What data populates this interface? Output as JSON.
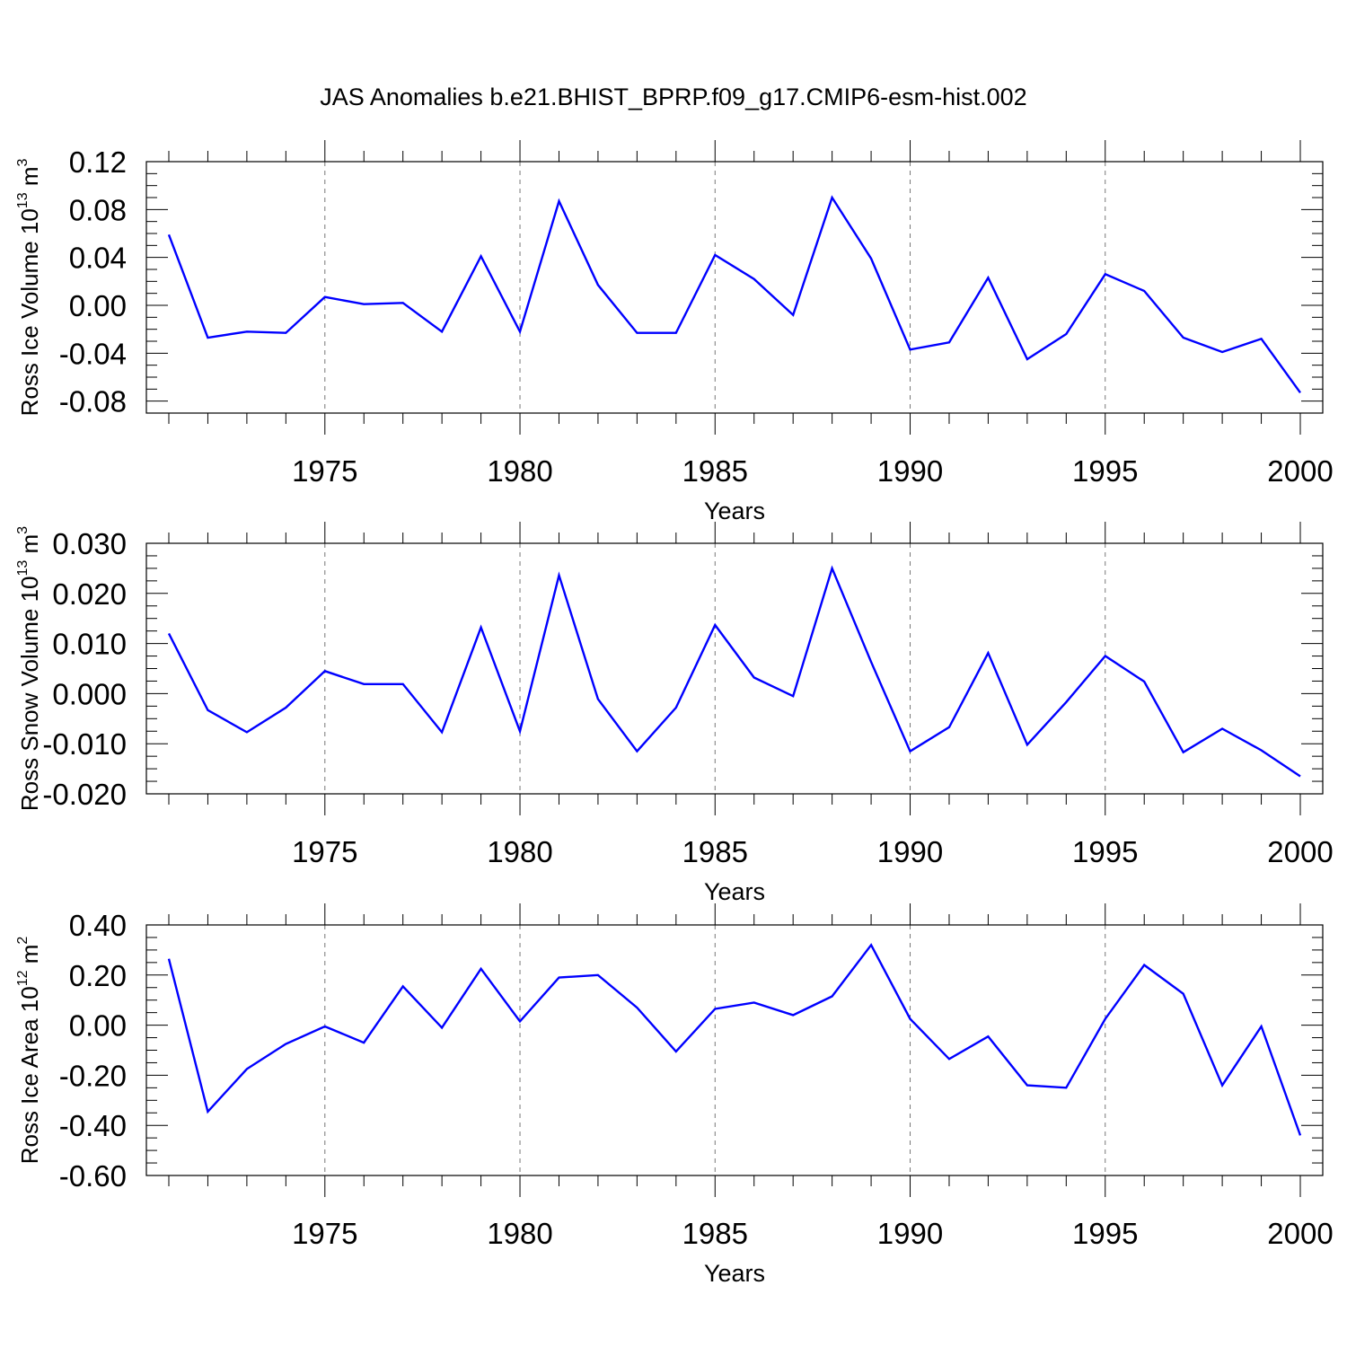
{
  "title": "JAS Anomalies b.e21.BHIST_BPRP.f09_g17.CMIP6-esm-hist.002",
  "colors": {
    "line": "#0000ff"
  },
  "chart_data": [
    {
      "type": "line",
      "ylabel": "Ross Ice Volume 10",
      "ylabel_exp": "13",
      "ylabel_unit": " m",
      "ylabel_unit_exp": "3",
      "xlabel": "Years",
      "xlim": [
        1971,
        2000
      ],
      "ylim": [
        -0.09,
        0.12
      ],
      "yticks": [
        0.12,
        0.08,
        0.04,
        0.0,
        -0.04,
        -0.08
      ],
      "ytick_labels": [
        "0.12",
        "0.08",
        "0.04",
        "0.00",
        "-0.04",
        "-0.08"
      ],
      "yminor_step": 0.01,
      "xticks": [
        1975,
        1980,
        1985,
        1990,
        1995,
        2000
      ],
      "xtick_labels": [
        "1975",
        "1980",
        "1985",
        "1990",
        "1995",
        "2000"
      ],
      "grid": "dashed vertical at major x ticks",
      "x": [
        1971,
        1972,
        1973,
        1974,
        1975,
        1976,
        1977,
        1978,
        1979,
        1980,
        1981,
        1982,
        1983,
        1984,
        1985,
        1986,
        1987,
        1988,
        1989,
        1990,
        1991,
        1992,
        1993,
        1994,
        1995,
        1996,
        1997,
        1998,
        1999,
        2000
      ],
      "y": [
        0.059,
        -0.027,
        -0.022,
        -0.023,
        0.007,
        0.001,
        0.002,
        -0.022,
        0.041,
        -0.022,
        0.087,
        0.017,
        -0.023,
        -0.023,
        0.042,
        0.022,
        -0.008,
        0.09,
        0.039,
        -0.037,
        -0.031,
        0.023,
        -0.045,
        -0.024,
        0.026,
        0.012,
        -0.027,
        -0.039,
        -0.028,
        -0.073
      ]
    },
    {
      "type": "line",
      "ylabel": "Ross Snow Volume 10",
      "ylabel_exp": "13",
      "ylabel_unit": " m",
      "ylabel_unit_exp": "3",
      "xlabel": "Years",
      "xlim": [
        1971,
        2000
      ],
      "ylim": [
        -0.02,
        0.03
      ],
      "yticks": [
        0.03,
        0.02,
        0.01,
        0.0,
        -0.01,
        -0.02
      ],
      "ytick_labels": [
        "0.030",
        "0.020",
        "0.010",
        "0.000",
        "-0.010",
        "-0.020"
      ],
      "yminor_step": 0.0025,
      "xticks": [
        1975,
        1980,
        1985,
        1990,
        1995,
        2000
      ],
      "xtick_labels": [
        "1975",
        "1980",
        "1985",
        "1990",
        "1995",
        "2000"
      ],
      "grid": "dashed vertical at major x ticks",
      "x": [
        1971,
        1972,
        1973,
        1974,
        1975,
        1976,
        1977,
        1978,
        1979,
        1980,
        1981,
        1982,
        1983,
        1984,
        1985,
        1986,
        1987,
        1988,
        1989,
        1990,
        1991,
        1992,
        1993,
        1994,
        1995,
        1996,
        1997,
        1998,
        1999,
        2000
      ],
      "y": [
        0.012,
        -0.0033,
        -0.0077,
        -0.0028,
        0.0045,
        0.0019,
        0.0019,
        -0.0077,
        0.0132,
        -0.0075,
        0.0236,
        -0.0011,
        -0.0115,
        -0.0028,
        0.0137,
        0.0032,
        -0.0005,
        0.025,
        0.0063,
        -0.0115,
        -0.0067,
        0.0081,
        -0.0102,
        -0.0017,
        0.0075,
        0.0024,
        -0.0117,
        -0.007,
        -0.0113,
        -0.0165
      ]
    },
    {
      "type": "line",
      "ylabel": "Ross Ice Area 10",
      "ylabel_exp": "12",
      "ylabel_unit": " m",
      "ylabel_unit_exp": "2",
      "xlabel": "Years",
      "xlim": [
        1971,
        2000
      ],
      "ylim": [
        -0.6,
        0.4
      ],
      "yticks": [
        0.4,
        0.2,
        0.0,
        -0.2,
        -0.4,
        -0.6
      ],
      "ytick_labels": [
        "0.40",
        "0.20",
        "0.00",
        "-0.20",
        "-0.40",
        "-0.60"
      ],
      "yminor_step": 0.05,
      "xticks": [
        1975,
        1980,
        1985,
        1990,
        1995,
        2000
      ],
      "xtick_labels": [
        "1975",
        "1980",
        "1985",
        "1990",
        "1995",
        "2000"
      ],
      "grid": "dashed vertical at major x ticks",
      "x": [
        1971,
        1972,
        1973,
        1974,
        1975,
        1976,
        1977,
        1978,
        1979,
        1980,
        1981,
        1982,
        1983,
        1984,
        1985,
        1986,
        1987,
        1988,
        1989,
        1990,
        1991,
        1992,
        1993,
        1994,
        1995,
        1996,
        1997,
        1998,
        1999,
        2000
      ],
      "y": [
        0.265,
        -0.345,
        -0.175,
        -0.075,
        -0.005,
        -0.07,
        0.155,
        -0.01,
        0.225,
        0.015,
        0.19,
        0.2,
        0.07,
        -0.105,
        0.065,
        0.09,
        0.04,
        0.115,
        0.32,
        0.025,
        -0.135,
        -0.045,
        -0.24,
        -0.25,
        0.025,
        0.24,
        0.125,
        -0.24,
        -0.005,
        -0.44
      ]
    }
  ]
}
